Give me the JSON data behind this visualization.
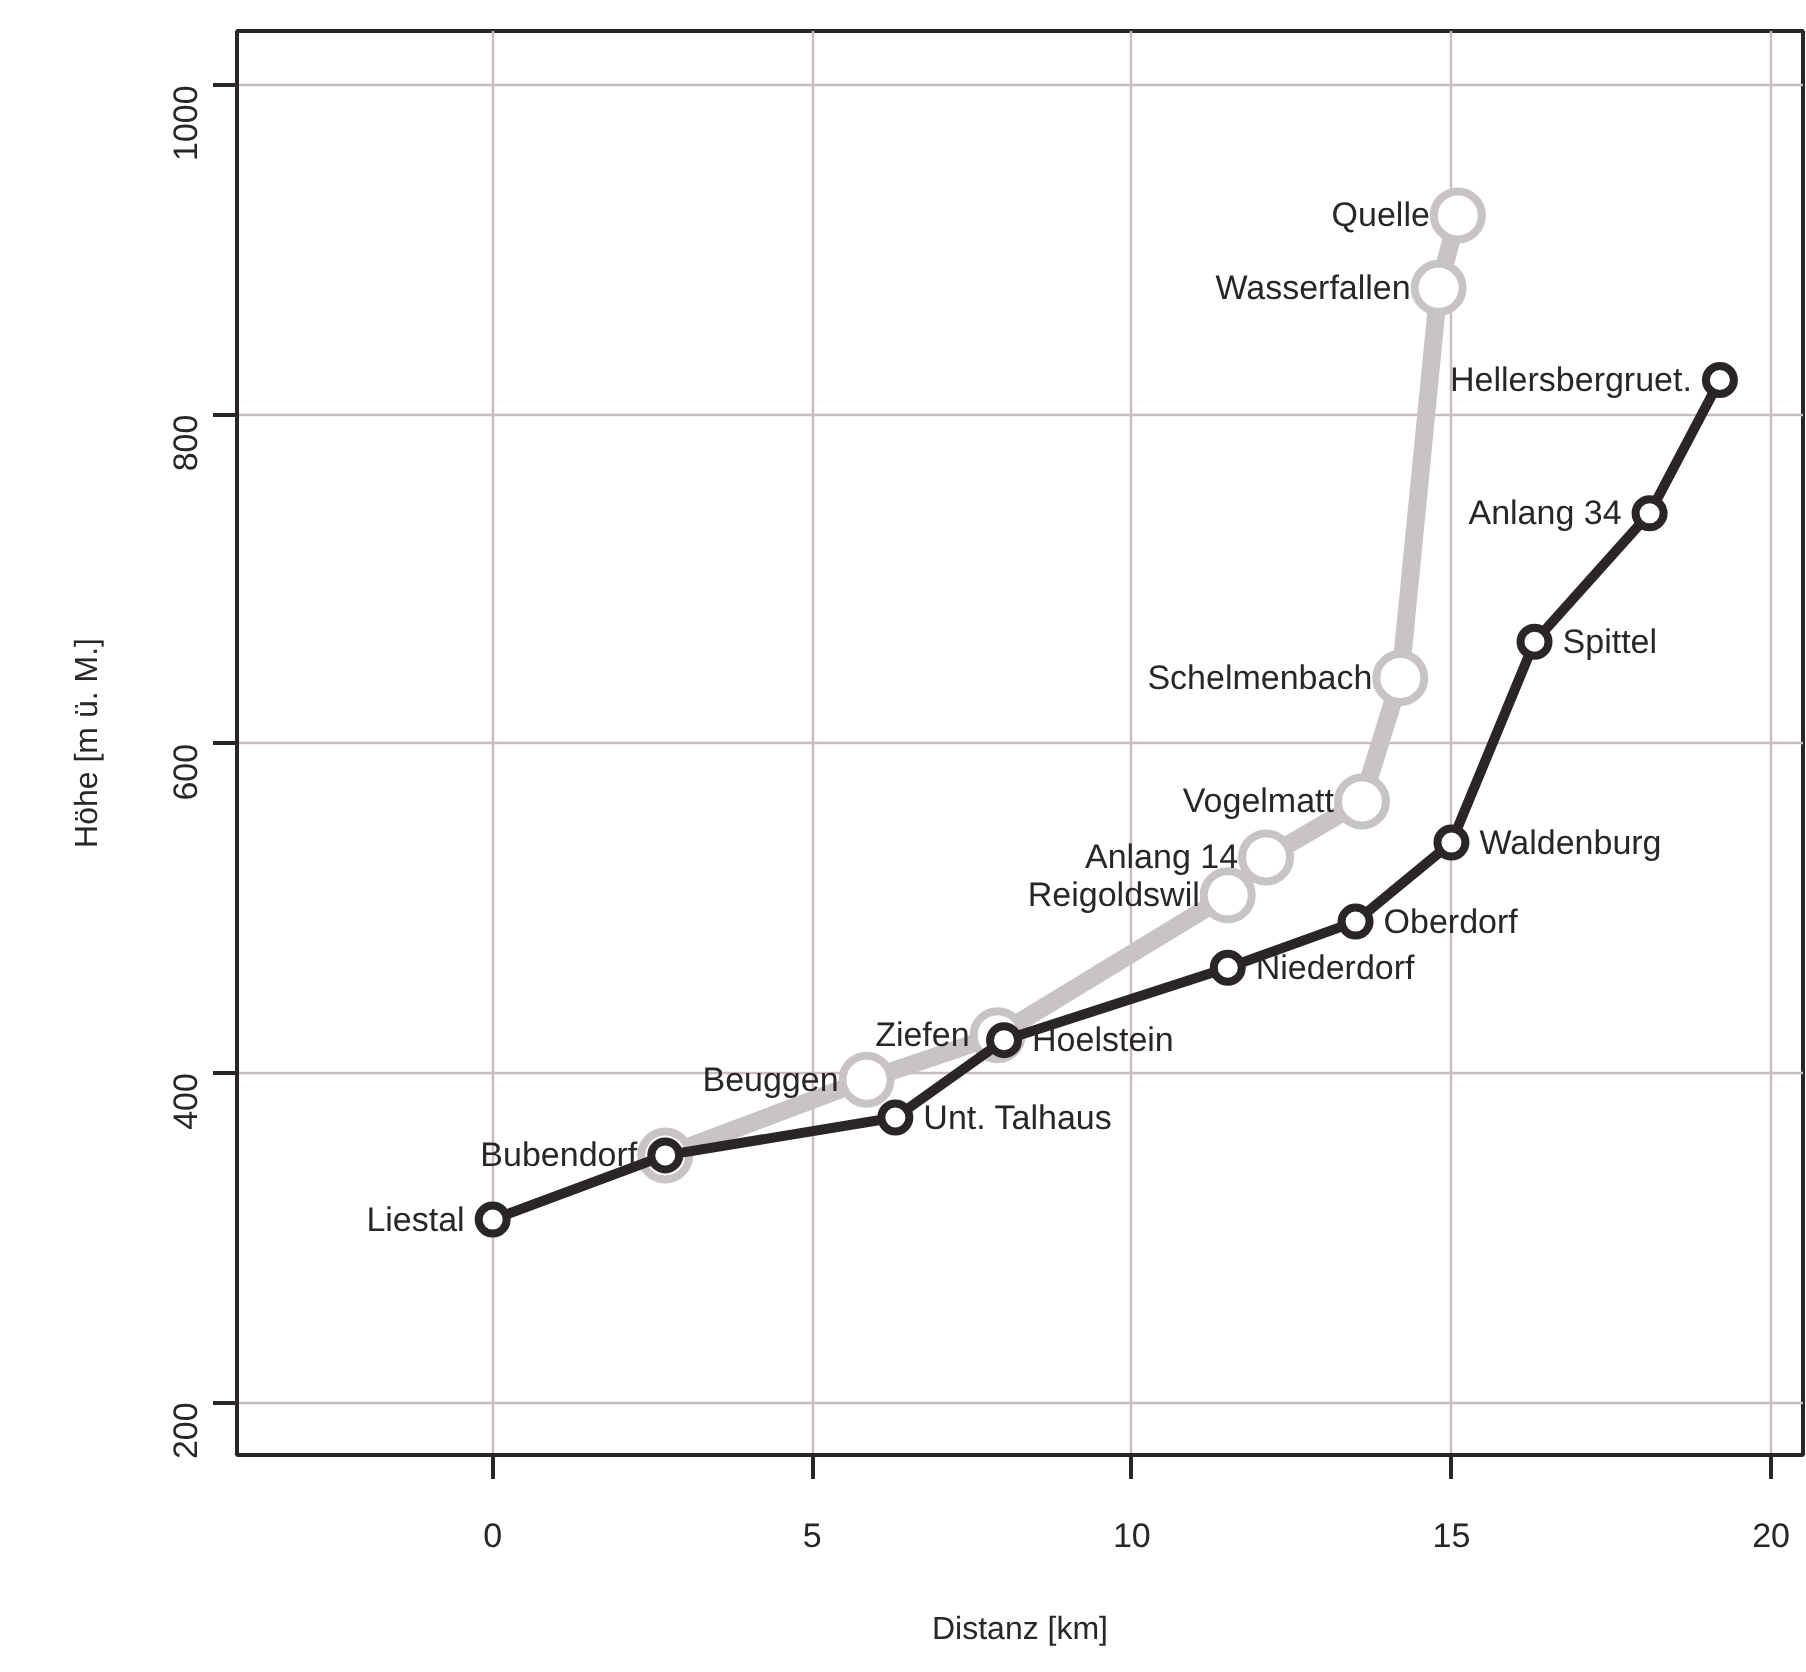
{
  "chart_data": {
    "type": "line",
    "xlabel": "Distanz [km]",
    "ylabel": "Höhe [m ü. M.]",
    "xlim": [
      -4,
      20.5
    ],
    "ylim": [
      168,
      1033
    ],
    "xticks": [
      0,
      5,
      10,
      15,
      20
    ],
    "yticks": [
      200,
      400,
      600,
      800,
      1000
    ],
    "grid": true,
    "marker": "circle",
    "line_style": "solid",
    "series": [
      {
        "color": "#c8c4c4",
        "x": [
          2.7,
          5.85,
          7.9,
          11.5,
          12.1,
          13.6,
          14.2,
          14.8,
          15.1
        ],
        "values": [
          350,
          396,
          423,
          508,
          531,
          565,
          640,
          877,
          921
        ]
      },
      {
        "color": "#2b2626",
        "x": [
          0,
          2.7,
          6.3,
          8.0,
          11.5,
          13.5,
          15.0,
          16.3,
          18.1,
          19.2
        ],
        "values": [
          311,
          350,
          373,
          420,
          464,
          492,
          540,
          662,
          740,
          821
        ]
      }
    ],
    "annotations": [
      {
        "text": "Beuggen",
        "x": 5.85,
        "y": 396
      },
      {
        "text": "Ziefen",
        "x": 7.9,
        "y": 423
      },
      {
        "text": "Reigoldswil",
        "x": 11.5,
        "y": 508
      },
      {
        "text": "Anlang 14",
        "x": 12.1,
        "y": 531
      },
      {
        "text": "Vogelmatt",
        "x": 13.6,
        "y": 565
      },
      {
        "text": "Schelmenbach",
        "x": 14.2,
        "y": 640
      },
      {
        "text": "Wasserfallen",
        "x": 14.8,
        "y": 877
      },
      {
        "text": "Quelle",
        "x": 15.1,
        "y": 921
      },
      {
        "text": "Liestal",
        "x": 0,
        "y": 311
      },
      {
        "text": "Bubendorf",
        "x": 2.7,
        "y": 350
      },
      {
        "text": "Unt. Talhaus",
        "x": 6.3,
        "y": 373
      },
      {
        "text": "Hoelstein",
        "x": 8.0,
        "y": 420
      },
      {
        "text": "Niederdorf",
        "x": 11.5,
        "y": 464
      },
      {
        "text": "Oberdorf",
        "x": 13.5,
        "y": 492
      },
      {
        "text": "Waldenburg",
        "x": 15.0,
        "y": 540
      },
      {
        "text": "Spittel",
        "x": 16.3,
        "y": 662
      },
      {
        "text": "Anlang 34",
        "x": 18.1,
        "y": 740
      },
      {
        "text": "Hellersbergruet.",
        "x": 19.2,
        "y": 821
      }
    ]
  }
}
